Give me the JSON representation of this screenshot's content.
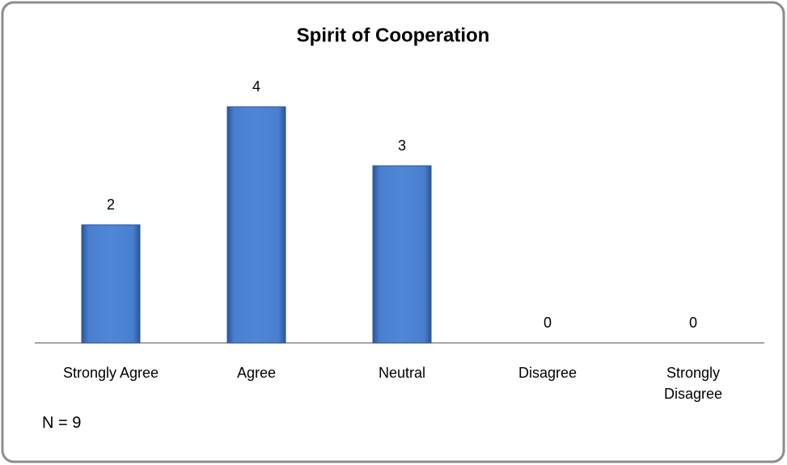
{
  "chart_data": {
    "type": "bar",
    "title": "Spirit of Cooperation",
    "categories": [
      "Strongly Agree",
      "Agree",
      "Neutral",
      "Disagree",
      "Strongly Disagree"
    ],
    "values": [
      2,
      4,
      3,
      0,
      0
    ],
    "color": "#4f81bd",
    "ylim": [
      0,
      5
    ],
    "annotation": "N = 9"
  }
}
